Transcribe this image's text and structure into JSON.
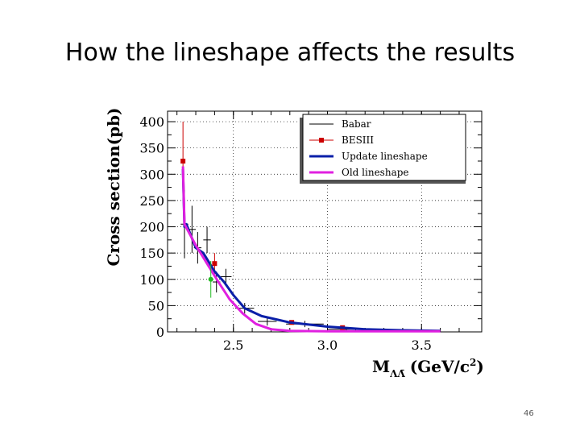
{
  "slide": {
    "title": "How the lineshape affects the results",
    "page_number": "46"
  },
  "chart_data": {
    "type": "line",
    "title": "",
    "xlabel": "M",
    "xlabel_sub": "ΛΛ̄",
    "xlabel_units": "(GeV/c",
    "xlabel_units_sup": "2",
    "xlabel_units_end": ")",
    "ylabel": "Cross section(pb)",
    "xlim": [
      2.15,
      3.82
    ],
    "ylim": [
      0,
      420
    ],
    "x_ticks": [
      "2.5",
      "3.0",
      "3.5"
    ],
    "y_ticks": [
      "0",
      "50",
      "100",
      "150",
      "200",
      "250",
      "300",
      "350",
      "400"
    ],
    "x_tick_values": [
      2.5,
      3.0,
      3.5
    ],
    "y_tick_values": [
      0,
      50,
      100,
      150,
      200,
      250,
      300,
      350,
      400
    ],
    "grid": true,
    "legend_position": "top-right",
    "series": [
      {
        "name": "Babar",
        "kind": "errorbars",
        "color": "#000000",
        "points": [
          {
            "x": 2.24,
            "y": 205,
            "ex": 0.02,
            "ey": 65
          },
          {
            "x": 2.28,
            "y": 195,
            "ex": 0.02,
            "ey": 45
          },
          {
            "x": 2.31,
            "y": 160,
            "ex": 0.02,
            "ey": 30
          },
          {
            "x": 2.36,
            "y": 175,
            "ex": 0.02,
            "ey": 25
          },
          {
            "x": 2.41,
            "y": 95,
            "ex": 0.02,
            "ey": 20
          },
          {
            "x": 2.46,
            "y": 105,
            "ex": 0.03,
            "ey": 15
          },
          {
            "x": 2.56,
            "y": 45,
            "ex": 0.05,
            "ey": 10
          },
          {
            "x": 2.68,
            "y": 20,
            "ex": 0.05,
            "ey": 8
          },
          {
            "x": 2.88,
            "y": 15,
            "ex": 0.1,
            "ey": 6
          },
          {
            "x": 3.15,
            "y": 5,
            "ex": 0.15,
            "ey": 3
          }
        ]
      },
      {
        "name": "BESIII",
        "kind": "errorbars-marker",
        "color": "#cc0000",
        "points": [
          {
            "x": 2.232,
            "y": 325,
            "ex": 0,
            "ey": 75
          },
          {
            "x": 2.4,
            "y": 130,
            "ex": 0,
            "ey": 20
          },
          {
            "x": 2.81,
            "y": 18,
            "ex": 0,
            "ey": 4
          },
          {
            "x": 3.08,
            "y": 8,
            "ex": 0,
            "ey": 3
          }
        ]
      },
      {
        "name": "Update lineshape",
        "kind": "line",
        "color": "#0a1fa8",
        "x": [
          2.232,
          2.24,
          2.25,
          2.3,
          2.34,
          2.4,
          2.45,
          2.5,
          2.56,
          2.65,
          2.8,
          3.0,
          3.2,
          3.4,
          3.6
        ],
        "y": [
          310,
          200,
          205,
          160,
          150,
          115,
          95,
          70,
          45,
          30,
          18,
          10,
          5,
          3,
          2
        ]
      },
      {
        "name": "Old lineshape",
        "kind": "line",
        "color": "#e020e0",
        "x": [
          2.232,
          2.24,
          2.3,
          2.36,
          2.42,
          2.48,
          2.55,
          2.62,
          2.7,
          2.8,
          3.0,
          3.2,
          3.4,
          3.6
        ],
        "y": [
          315,
          205,
          165,
          130,
          95,
          62,
          35,
          15,
          5,
          2,
          1,
          1,
          1,
          1
        ]
      },
      {
        "name": "",
        "kind": "point",
        "color": "#22bb22",
        "points": [
          {
            "x": 2.38,
            "y": 100,
            "ex": 0,
            "ey": 35
          }
        ]
      }
    ]
  }
}
